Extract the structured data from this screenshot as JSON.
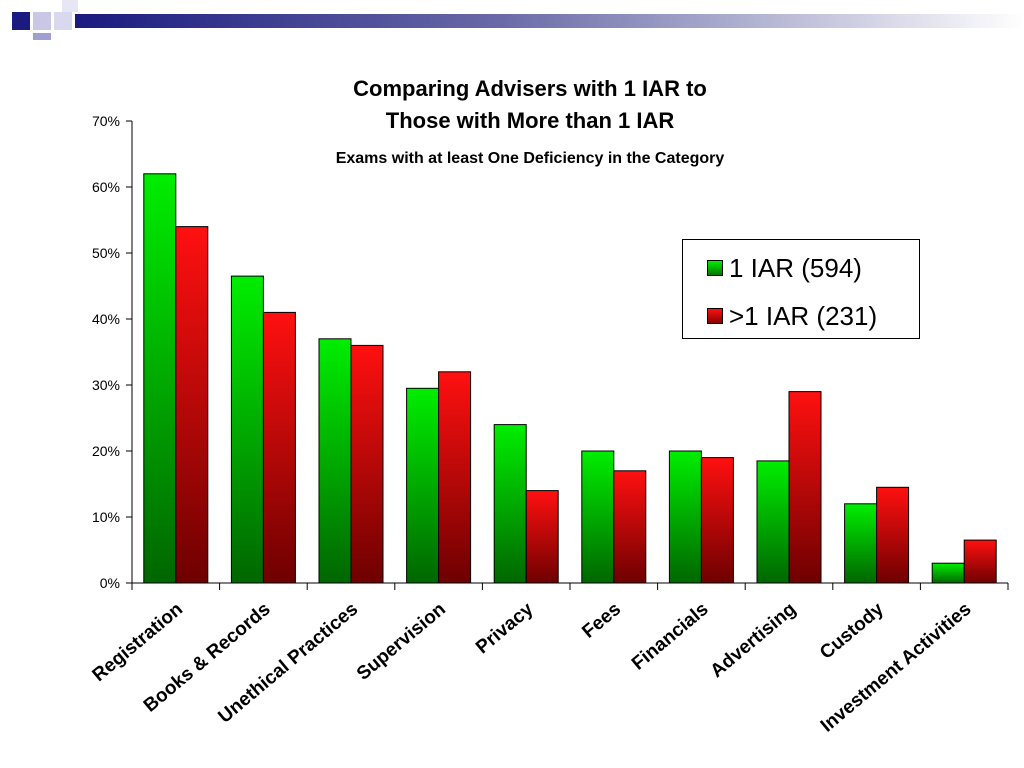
{
  "chart_data": {
    "type": "bar",
    "title_lines": [
      "Comparing Advisers with 1 IAR to",
      "Those with More than 1 IAR"
    ],
    "subtitle": "Exams with at least One Deficiency in the Category",
    "categories": [
      "Registration",
      "Books & Records",
      "Unethical Practices",
      "Supervision",
      "Privacy",
      "Fees",
      "Financials",
      "Advertising",
      "Custody",
      "Investment Activities"
    ],
    "series": [
      {
        "name": "1 IAR (594)",
        "color": "#00cc00",
        "values": [
          62,
          46.5,
          37,
          29.5,
          24,
          20,
          20,
          18.5,
          12,
          3
        ]
      },
      {
        "name": ">1 IAR (231)",
        "color": "#ee0000",
        "values": [
          54,
          41,
          36,
          32,
          14,
          17,
          19,
          29,
          14.5,
          6.5
        ]
      }
    ],
    "ylim": [
      0,
      70
    ],
    "yticks": [
      "0%",
      "10%",
      "20%",
      "30%",
      "40%",
      "50%",
      "60%",
      "70%"
    ],
    "grid": false,
    "legend_position": "right"
  }
}
